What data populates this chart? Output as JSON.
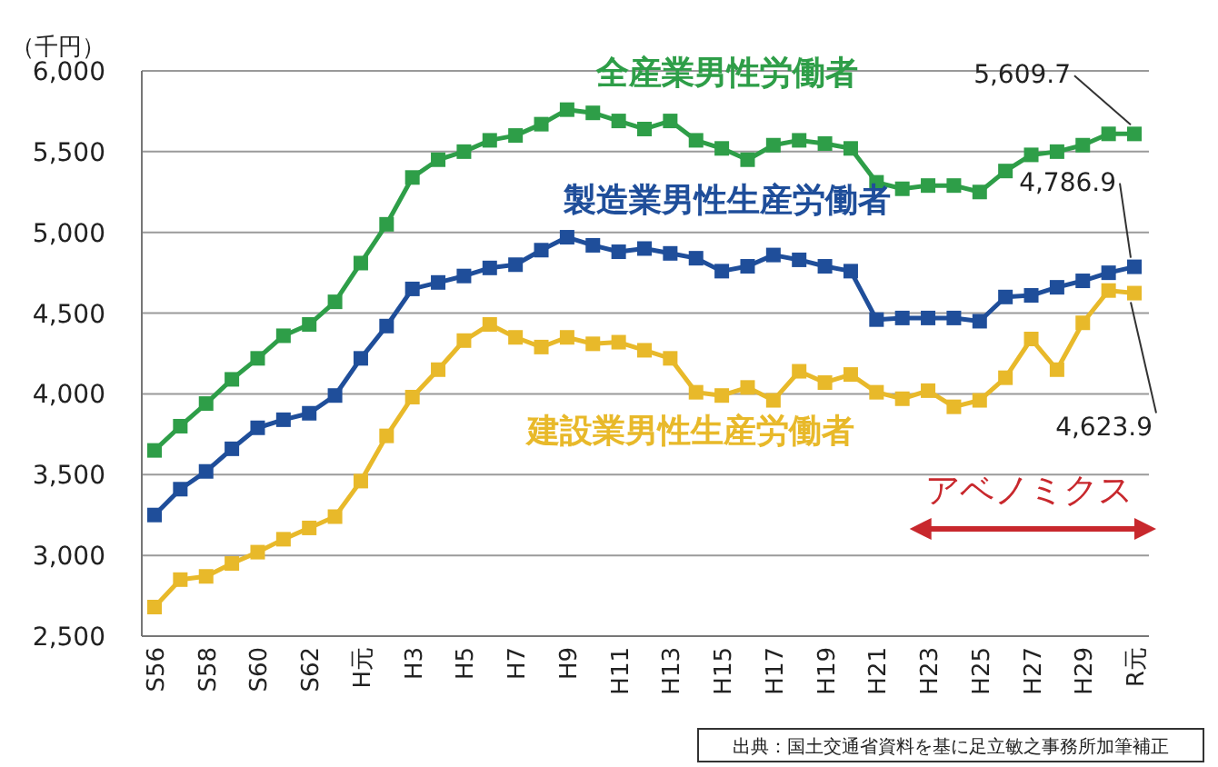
{
  "chart_data": {
    "type": "line",
    "ylabel": "（千円）",
    "categories": [
      "S56",
      null,
      "S58",
      null,
      "S60",
      null,
      "S62",
      null,
      "H元",
      null,
      "H3",
      null,
      "H5",
      null,
      "H7",
      null,
      "H9",
      null,
      "H11",
      null,
      "H13",
      null,
      "H15",
      null,
      "H17",
      null,
      "H19",
      null,
      "H21",
      null,
      "H23",
      null,
      "H25",
      null,
      "H27",
      null,
      "H29",
      null,
      "R元"
    ],
    "series": [
      {
        "name": "全産業男性労働者",
        "color": "#2e9e48",
        "values": [
          3650,
          3800,
          3940,
          4090,
          4220,
          4360,
          4430,
          4570,
          4810,
          5050,
          5340,
          5450,
          5500,
          5570,
          5600,
          5670,
          5760,
          5740,
          5690,
          5640,
          5690,
          5570,
          5520,
          5450,
          5540,
          5570,
          5550,
          5520,
          5310,
          5270,
          5290,
          5290,
          5250,
          5380,
          5480,
          5500,
          5540,
          5610,
          5609.7
        ],
        "value_labels": [
          null,
          null,
          null,
          null,
          null,
          null,
          null,
          null,
          null,
          null,
          null,
          null,
          null,
          null,
          null,
          null,
          null,
          null,
          null,
          null,
          null,
          null,
          null,
          null,
          null,
          null,
          null,
          null,
          null,
          null,
          null,
          null,
          null,
          null,
          null,
          null,
          null,
          null,
          "5,609.7"
        ]
      },
      {
        "name": "製造業男性生産労働者",
        "color": "#1f4e9a",
        "values": [
          3250,
          3410,
          3520,
          3660,
          3790,
          3840,
          3880,
          3990,
          4220,
          4420,
          4650,
          4690,
          4730,
          4780,
          4800,
          4890,
          4970,
          4920,
          4880,
          4900,
          4870,
          4840,
          4760,
          4790,
          4860,
          4830,
          4790,
          4760,
          4460,
          4470,
          4470,
          4470,
          4450,
          4600,
          4610,
          4660,
          4700,
          4750,
          4786.9
        ],
        "value_labels": [
          null,
          null,
          null,
          null,
          null,
          null,
          null,
          null,
          null,
          null,
          null,
          null,
          null,
          null,
          null,
          null,
          null,
          null,
          null,
          null,
          null,
          null,
          null,
          null,
          null,
          null,
          null,
          null,
          null,
          null,
          null,
          null,
          null,
          null,
          null,
          null,
          null,
          null,
          "4,786.9"
        ]
      },
      {
        "name": "建設業男性生産労働者",
        "color": "#e8b92a",
        "values": [
          2680,
          2850,
          2870,
          2950,
          3020,
          3100,
          3170,
          3240,
          3460,
          3740,
          3980,
          4150,
          4330,
          4430,
          4350,
          4290,
          4350,
          4310,
          4320,
          4270,
          4220,
          4010,
          3990,
          4040,
          3960,
          4140,
          4070,
          4120,
          4010,
          3970,
          4020,
          3920,
          3960,
          4100,
          4340,
          4150,
          4440,
          4640,
          4623.9
        ],
        "value_labels": [
          null,
          null,
          null,
          null,
          null,
          null,
          null,
          null,
          null,
          null,
          null,
          null,
          null,
          null,
          null,
          null,
          null,
          null,
          null,
          null,
          null,
          null,
          null,
          null,
          null,
          null,
          null,
          null,
          null,
          null,
          null,
          null,
          null,
          null,
          null,
          null,
          null,
          null,
          "4,623.9"
        ]
      }
    ],
    "ylim": [
      2500,
      6000
    ],
    "yticks": [
      {
        "value": 2500,
        "label": "2,500"
      },
      {
        "value": 3000,
        "label": "3,000"
      },
      {
        "value": 3500,
        "label": "3,500"
      },
      {
        "value": 4000,
        "label": "4,000"
      },
      {
        "value": 4500,
        "label": "4,500"
      },
      {
        "value": 5000,
        "label": "5,000"
      },
      {
        "value": 5500,
        "label": "5,500"
      },
      {
        "value": 6000,
        "label": "6,000"
      }
    ],
    "grid": "y",
    "legend": false,
    "marker": "square",
    "annotations": [
      "アベノミクス",
      "出典：国土交通省資料を基に足立敏之事務所加筆補正"
    ]
  }
}
